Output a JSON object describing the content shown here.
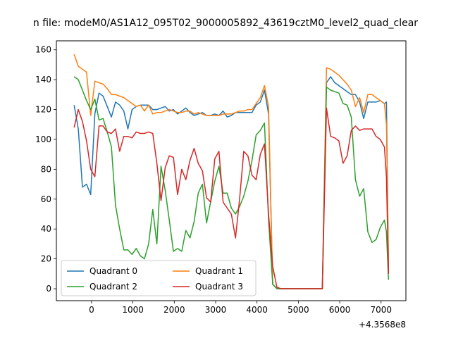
{
  "chart_data": {
    "type": "line",
    "title": "n file: modeM0/AS1A12_095T02_9000005892_43619cztM0_level2_quad_clear",
    "offset_label": "+4.3568e8",
    "xlim": [
      -850,
      7600
    ],
    "ylim": [
      -8,
      166
    ],
    "xticks": [
      0,
      1000,
      2000,
      3000,
      4000,
      5000,
      6000,
      7000
    ],
    "yticks": [
      0,
      20,
      40,
      60,
      80,
      100,
      120,
      140,
      160
    ],
    "grid": false,
    "legend": {
      "placement": "lower-left",
      "columns": 2
    },
    "x": [
      -420,
      -320,
      -220,
      -120,
      -20,
      80,
      180,
      280,
      380,
      480,
      580,
      680,
      780,
      880,
      980,
      1080,
      1180,
      1280,
      1380,
      1480,
      1580,
      1680,
      1780,
      1880,
      1980,
      2080,
      2180,
      2280,
      2380,
      2480,
      2580,
      2680,
      2780,
      2880,
      2980,
      3080,
      3180,
      3280,
      3380,
      3480,
      3580,
      3680,
      3780,
      3880,
      3980,
      4080,
      4180,
      4280,
      4380,
      4480,
      4580,
      4680,
      4780,
      4880,
      4980,
      5080,
      5180,
      5280,
      5380,
      5480,
      5580,
      5680,
      5780,
      5880,
      5980,
      6080,
      6180,
      6280,
      6380,
      6480,
      6580,
      6680,
      6780,
      6880,
      6980,
      7080,
      7130,
      7180
    ],
    "series": [
      {
        "name": "Quadrant 0",
        "color": "#1f77b4",
        "values": [
          123,
          107,
          68,
          70,
          63,
          117,
          131,
          129,
          122,
          115,
          125,
          123,
          119,
          107,
          120,
          122,
          123,
          123,
          123,
          120,
          120,
          121,
          122,
          119,
          120,
          117,
          119,
          121,
          118,
          116,
          117,
          118,
          116,
          116,
          117,
          116,
          119,
          115,
          116,
          118,
          118,
          118,
          118,
          118,
          123,
          125,
          133,
          117,
          3,
          0,
          0,
          0,
          0,
          0,
          0,
          0,
          0,
          0,
          0,
          0,
          0,
          138,
          142,
          138,
          136,
          134,
          132,
          130,
          130,
          125,
          114,
          125,
          125,
          125,
          126,
          124,
          125,
          12
        ]
      },
      {
        "name": "Quadrant 1",
        "color": "#ff7f0e",
        "values": [
          157,
          149,
          147,
          145,
          116,
          139,
          138,
          137,
          134,
          130,
          130,
          129,
          128,
          126,
          124,
          122,
          123,
          119,
          123,
          117,
          118,
          118,
          119,
          120,
          119,
          118,
          118,
          119,
          119,
          117,
          118,
          117,
          116,
          116,
          116,
          116,
          117,
          117,
          117,
          118,
          119,
          119,
          120,
          120,
          124,
          128,
          136,
          122,
          3,
          0,
          0,
          0,
          0,
          0,
          0,
          0,
          0,
          0,
          0,
          0,
          0,
          148,
          147,
          145,
          143,
          140,
          137,
          133,
          122,
          128,
          118,
          130,
          130,
          128,
          126,
          124,
          110,
          17
        ]
      },
      {
        "name": "Quadrant 2",
        "color": "#2ca02c",
        "values": [
          142,
          140,
          133,
          126,
          120,
          127,
          113,
          114,
          105,
          95,
          56,
          40,
          26,
          26,
          23,
          27,
          22,
          20,
          30,
          53,
          30,
          82,
          66,
          46,
          25,
          27,
          25,
          39,
          34,
          45,
          64,
          70,
          44,
          58,
          72,
          82,
          64,
          64,
          54,
          50,
          55,
          62,
          72,
          86,
          103,
          106,
          111,
          46,
          3,
          0,
          0,
          0,
          0,
          0,
          0,
          0,
          0,
          0,
          0,
          0,
          0,
          135,
          133,
          132,
          131,
          124,
          123,
          115,
          73,
          62,
          67,
          38,
          31,
          33,
          41,
          46,
          38,
          6
        ]
      },
      {
        "name": "Quadrant 3",
        "color": "#d62728",
        "values": [
          108,
          120,
          112,
          99,
          80,
          75,
          109,
          109,
          105,
          104,
          107,
          92,
          102,
          102,
          101,
          105,
          104,
          104,
          105,
          104,
          84,
          59,
          81,
          89,
          88,
          63,
          80,
          73,
          86,
          94,
          84,
          79,
          61,
          58,
          87,
          92,
          58,
          54,
          50,
          34,
          60,
          92,
          89,
          76,
          73,
          90,
          97,
          50,
          15,
          1,
          0,
          0,
          0,
          0,
          0,
          0,
          0,
          0,
          0,
          0,
          0,
          121,
          102,
          101,
          99,
          84,
          89,
          106,
          109,
          106,
          107,
          107,
          107,
          102,
          100,
          95,
          75,
          10
        ]
      }
    ]
  }
}
